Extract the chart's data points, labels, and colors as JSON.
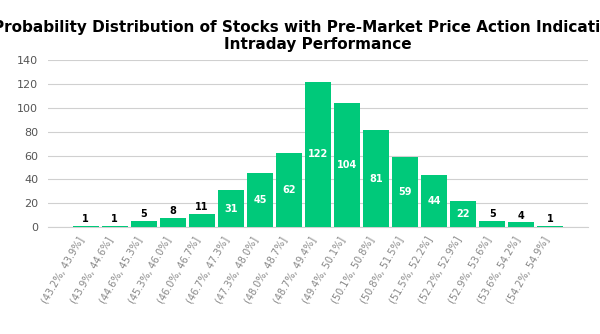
{
  "title": "Probability Distribution of Stocks with Pre-Market Price Action Indicative of\nIntraday Performance",
  "categories": [
    "(43.2%, 43.9%]",
    "(43.9%, 44.6%]",
    "(44.6%, 45.3%]",
    "(45.3%, 46.0%]",
    "(46.0%, 46.7%]",
    "(46.7%, 47.3%]",
    "(47.3%, 48.0%]",
    "(48.0%, 48.7%]",
    "(48.7%, 49.4%]",
    "(49.4%, 50.1%]",
    "(50.1%, 50.8%]",
    "(50.8%, 51.5%]",
    "(51.5%, 52.2%]",
    "(52.2%, 52.9%]",
    "(52.9%, 53.6%]",
    "(53.6%, 54.2%]",
    "(54.2%, 54.9%]"
  ],
  "values": [
    1,
    1,
    5,
    8,
    11,
    31,
    45,
    62,
    122,
    104,
    81,
    59,
    44,
    22,
    5,
    4,
    1
  ],
  "bar_color": "#00c97a",
  "label_color_inside": "#ffffff",
  "label_color_outside": "#000000",
  "background_color": "#ffffff",
  "grid_color": "#d0d0d0",
  "ylim": [
    0,
    140
  ],
  "yticks": [
    0,
    20,
    40,
    60,
    80,
    100,
    120,
    140
  ],
  "title_fontsize": 11,
  "tick_label_fontsize": 7,
  "value_fontsize": 7,
  "inside_threshold": 15
}
